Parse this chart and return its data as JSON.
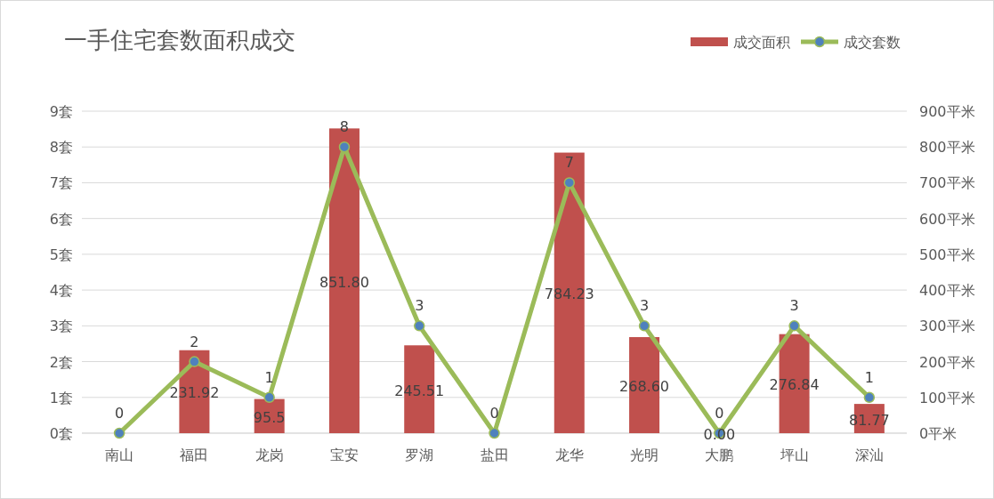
{
  "chart_data": {
    "type": "bar",
    "title": "一手住宅套数面积成交",
    "categories": [
      "南山",
      "福田",
      "龙岗",
      "宝安",
      "罗湖",
      "盐田",
      "龙华",
      "光明",
      "大鹏",
      "坪山",
      "深汕"
    ],
    "series": [
      {
        "name": "成交面积",
        "axis": "y2",
        "color": "#c0504d",
        "values": [
          0,
          231.92,
          95.5,
          851.8,
          245.51,
          0,
          784.23,
          268.6,
          0,
          276.84,
          81.77
        ],
        "value_labels": [
          null,
          "231.92",
          "95.5",
          "851.80",
          "245.51",
          null,
          "784.23",
          "268.60",
          "0.00",
          "276.84",
          "81.77"
        ]
      },
      {
        "name": "成交套数",
        "type": "line",
        "axis": "y",
        "color": "#9bbb59",
        "values": [
          0,
          2,
          1,
          8,
          3,
          0,
          7,
          3,
          0,
          3,
          1
        ],
        "value_labels": [
          "0",
          "2",
          "1",
          "8",
          "3",
          "0",
          "7",
          "3",
          "0",
          "3",
          "1"
        ]
      }
    ],
    "ylim": [
      0,
      9
    ],
    "yticks": [
      {
        "value": 0,
        "label": "0套"
      },
      {
        "value": 1,
        "label": "1套"
      },
      {
        "value": 2,
        "label": "2套"
      },
      {
        "value": 3,
        "label": "3套"
      },
      {
        "value": 4,
        "label": "4套"
      },
      {
        "value": 5,
        "label": "5套"
      },
      {
        "value": 6,
        "label": "6套"
      },
      {
        "value": 7,
        "label": "7套"
      },
      {
        "value": 8,
        "label": "8套"
      },
      {
        "value": 9,
        "label": "9套"
      }
    ],
    "y2lim": [
      0,
      900
    ],
    "y2ticks": [
      {
        "value": 0,
        "label": "0平米"
      },
      {
        "value": 100,
        "label": "100平米"
      },
      {
        "value": 200,
        "label": "200平米"
      },
      {
        "value": 300,
        "label": "300平米"
      },
      {
        "value": 400,
        "label": "400平米"
      },
      {
        "value": 500,
        "label": "500平米"
      },
      {
        "value": 600,
        "label": "600平米"
      },
      {
        "value": 700,
        "label": "700平米"
      },
      {
        "value": 800,
        "label": "800平米"
      },
      {
        "value": 900,
        "label": "900平米"
      }
    ],
    "grid": "y",
    "legend": "top right",
    "marker": "circle"
  }
}
